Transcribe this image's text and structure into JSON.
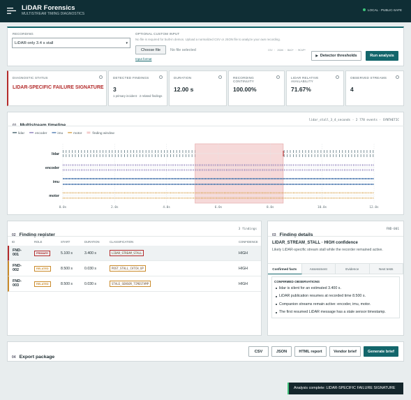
{
  "header": {
    "title": "LiDAR Forensics",
    "subtitle": "MULTISTREAM TIMING DIAGNOSTICS",
    "status": "LOCAL · PUBLIC-SAFE"
  },
  "input": {
    "recording_label": "RECORDING",
    "recording_value": "LiDAR-only 3.4 s stall",
    "custom_label": "OPTIONAL CUSTOM INPUT",
    "custom_help": "No file is required for built-in demos. Upload a normalized CSV or JSON file to analyze your own recording.",
    "choose_file": "Choose file",
    "no_file": "No file selected",
    "input_format": "Input format",
    "formats": "CSV · JSON · BAG* · MCAP*",
    "thresholds": "Detector thresholds",
    "run": "Run analysis"
  },
  "metrics": [
    {
      "label": "DIAGNOSTIC STATUS",
      "value": "LIDAR-SPECIFIC FAILURE SIGNATURE"
    },
    {
      "label": "DETECTED FINDINGS",
      "value": "3",
      "note": "1 primary incident · 2 related findings"
    },
    {
      "label": "DURATION",
      "value": "12.00 s"
    },
    {
      "label": "RECORDING CONTINUITY",
      "value": "100.00%"
    },
    {
      "label": "LIDAR RELATIVE AVAILABILITY",
      "value": "71.67%"
    },
    {
      "label": "OBSERVED STREAMS",
      "value": "4"
    }
  ],
  "chart_data": {
    "type": "timeline",
    "number": "01",
    "title": "Multistream timeline",
    "meta": "lidar_stall_3_4_seconds · 2 778 events · SYNTHETIC",
    "series": [
      {
        "name": "lidar",
        "color": "#44616c"
      },
      {
        "name": "encoder",
        "color": "#8a7db8"
      },
      {
        "name": "imu",
        "color": "#4f7bb0"
      },
      {
        "name": "motor",
        "color": "#d6a14a"
      }
    ],
    "window": {
      "name": "finding window",
      "color": "#f3cccc",
      "values": [
        5.1,
        8.5
      ]
    },
    "xlim": [
      0,
      12
    ],
    "xticks": [
      {
        "value": 0,
        "label": "0.0s"
      },
      {
        "value": 2,
        "label": "2.0s"
      },
      {
        "value": 4,
        "label": "4.0s"
      },
      {
        "value": 6,
        "label": "6.0s"
      },
      {
        "value": 8,
        "label": "8.0s"
      },
      {
        "value": 10,
        "label": "10.0s"
      },
      {
        "value": 12,
        "label": "12.0s"
      }
    ],
    "grid": true
  },
  "register": {
    "number": "02",
    "title": "Finding register",
    "count": "3 findings",
    "columns": [
      "ID",
      "ROLE",
      "START",
      "DURATION",
      "CLASSIFICATION",
      "CONFIDENCE"
    ],
    "rows": [
      [
        "FND-001",
        "PRIMARY",
        "5.100 s",
        "3.400 s",
        "LIDAR_STREAM_STALL",
        "HIGH"
      ],
      [
        "FND-002",
        "RELATED",
        "8.500 s",
        "0.030 s",
        "POST_STALL_CATCH_UP",
        "HIGH"
      ],
      [
        "FND-003",
        "RELATED",
        "8.500 s",
        "0.030 s",
        "STALE_SENSOR_TIMESTAMP",
        "HIGH"
      ]
    ]
  },
  "details": {
    "number": "03",
    "title": "Finding details",
    "id": "FND-001",
    "heading": "LIDAR_STREAM_STALL · HIGH confidence",
    "summary": "Likely LiDAR-specific stream stall while the recorder remained active.",
    "tabs": [
      "Confirmed facts",
      "Assessment",
      "Evidence",
      "Next tests"
    ],
    "section": "CONFIRMED OBSERVATIONS",
    "items": [
      "lidar is silent for an estimated 3.400 s.",
      "LiDAR publication resumes at recorded time 8.500 s.",
      "Companion streams remain active: encoder, imu, motor.",
      "The first resumed LiDAR message has a stale sensor timestamp."
    ]
  },
  "export": {
    "number": "04",
    "title": "Export package",
    "buttons": [
      "CSV",
      "JSON",
      "HTML report",
      "Vendor brief",
      "Generate brief"
    ]
  },
  "toast": "Analysis complete: LIDAR-SPECIFIC FAILURE SIGNATURE"
}
